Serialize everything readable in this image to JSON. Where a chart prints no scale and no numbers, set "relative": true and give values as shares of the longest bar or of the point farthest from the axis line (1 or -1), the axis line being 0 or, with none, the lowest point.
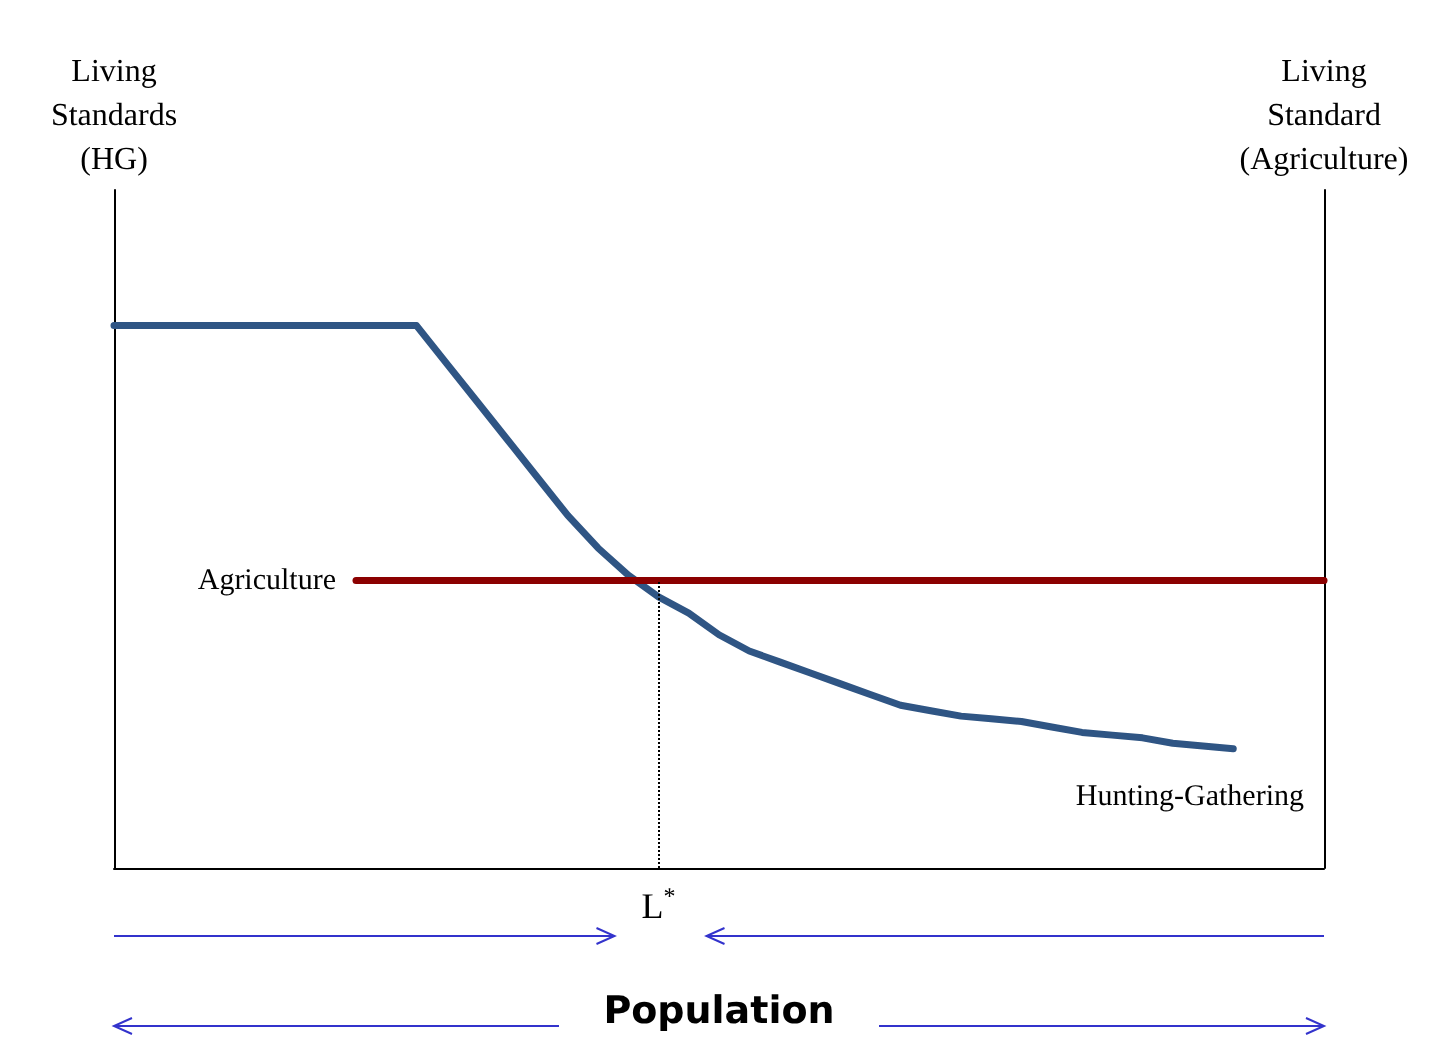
{
  "chart_data": {
    "type": "line",
    "relative": true,
    "xlabel": "Population",
    "ylabel": "Living Standards (HG)",
    "y2label": "Living Standard (Agriculture)",
    "categories": [
      null,
      null,
      null,
      null,
      null,
      null,
      null,
      null,
      null,
      null,
      null,
      null,
      null,
      null,
      null,
      null,
      null,
      null,
      null,
      null,
      null,
      null,
      null,
      null,
      null,
      null,
      null,
      null,
      null,
      null,
      null,
      null,
      null,
      null,
      null,
      null,
      null,
      null,
      null,
      null,
      null
    ],
    "series": [
      {
        "name": "Hunting-Gathering",
        "color": "#2f5584",
        "values": [
          1,
          1,
          1,
          1,
          1,
          1,
          1,
          1,
          1,
          1,
          1,
          0.93,
          0.86,
          0.79,
          0.72,
          0.65,
          0.59,
          0.54,
          0.5,
          0.47,
          0.43,
          0.4,
          0.38,
          0.36,
          0.34,
          0.32,
          0.3,
          0.29,
          0.28,
          0.275,
          0.27,
          0.26,
          0.25,
          0.245,
          0.24,
          0.23,
          0.225,
          0.22,
          null,
          null,
          null
        ]
      },
      {
        "name": "Agriculture",
        "color": "#8b0000",
        "values": [
          null,
          null,
          null,
          null,
          null,
          null,
          null,
          null,
          0.53,
          0.53,
          0.53,
          0.53,
          0.53,
          0.53,
          0.53,
          0.53,
          0.53,
          0.53,
          0.53,
          0.53,
          0.53,
          0.53,
          0.53,
          0.53,
          0.53,
          0.53,
          0.53,
          0.53,
          0.53,
          0.53,
          0.53,
          0.53,
          0.53,
          0.53,
          0.53,
          0.53,
          0.53,
          0.53,
          0.53,
          0.53,
          0.53
        ]
      }
    ],
    "annotations": [
      "L$^{*}$"
    ],
    "grid": false,
    "legend": false
  }
}
